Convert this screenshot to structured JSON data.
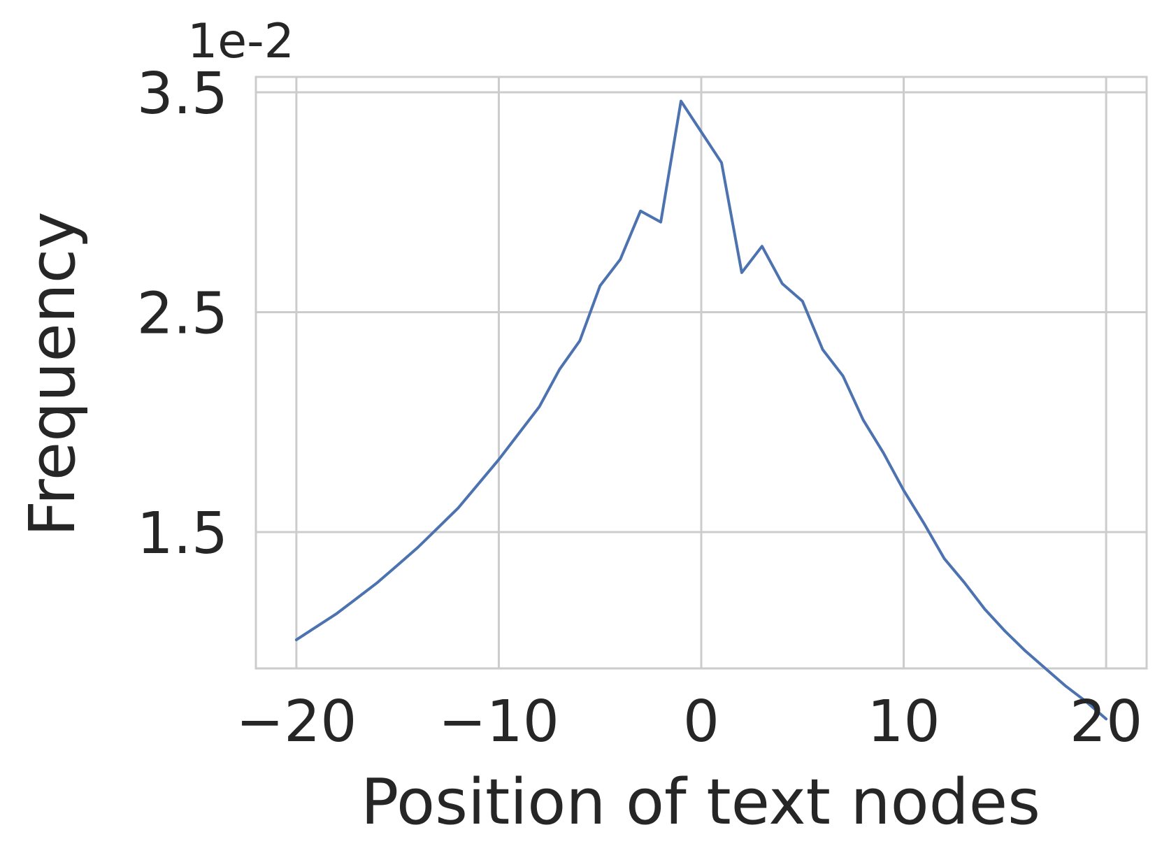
{
  "chart_data": {
    "type": "line",
    "title": "",
    "xlabel": "Position of text nodes",
    "ylabel": "Frequency",
    "y_scale_label": "1e-2",
    "xlim": [
      -22,
      22
    ],
    "ylim": [
      0.88,
      3.57
    ],
    "x_ticks": [
      {
        "value": -20,
        "label": "−20"
      },
      {
        "value": -10,
        "label": "−10"
      },
      {
        "value": 0,
        "label": "0"
      },
      {
        "value": 10,
        "label": "10"
      },
      {
        "value": 20,
        "label": "20"
      }
    ],
    "y_ticks": [
      {
        "value": 1.5,
        "label": "1.5"
      },
      {
        "value": 2.5,
        "label": "2.5"
      },
      {
        "value": 3.5,
        "label": "3.5"
      }
    ],
    "grid": true,
    "legend": false,
    "colors": {
      "line": "#4c72b0",
      "grid": "#cccccc",
      "text": "#262626"
    },
    "x": [
      -20,
      -19,
      -18,
      -17,
      -16,
      -15,
      -14,
      -13,
      -12,
      -11,
      -10,
      -9,
      -8,
      -7,
      -6,
      -5,
      -4,
      -3,
      -2,
      -1,
      0,
      1,
      2,
      3,
      4,
      5,
      6,
      7,
      8,
      9,
      10,
      11,
      12,
      13,
      14,
      15,
      16,
      17,
      18,
      19,
      20
    ],
    "y": [
      1.01,
      1.07,
      1.13,
      1.2,
      1.27,
      1.35,
      1.43,
      1.52,
      1.61,
      1.72,
      1.83,
      1.95,
      2.07,
      2.24,
      2.37,
      2.62,
      2.74,
      2.96,
      2.91,
      3.46,
      3.32,
      3.18,
      2.68,
      2.8,
      2.63,
      2.55,
      2.33,
      2.21,
      2.01,
      1.86,
      1.69,
      1.54,
      1.38,
      1.27,
      1.15,
      1.05,
      0.96,
      0.88,
      0.8,
      0.73,
      0.65
    ]
  }
}
